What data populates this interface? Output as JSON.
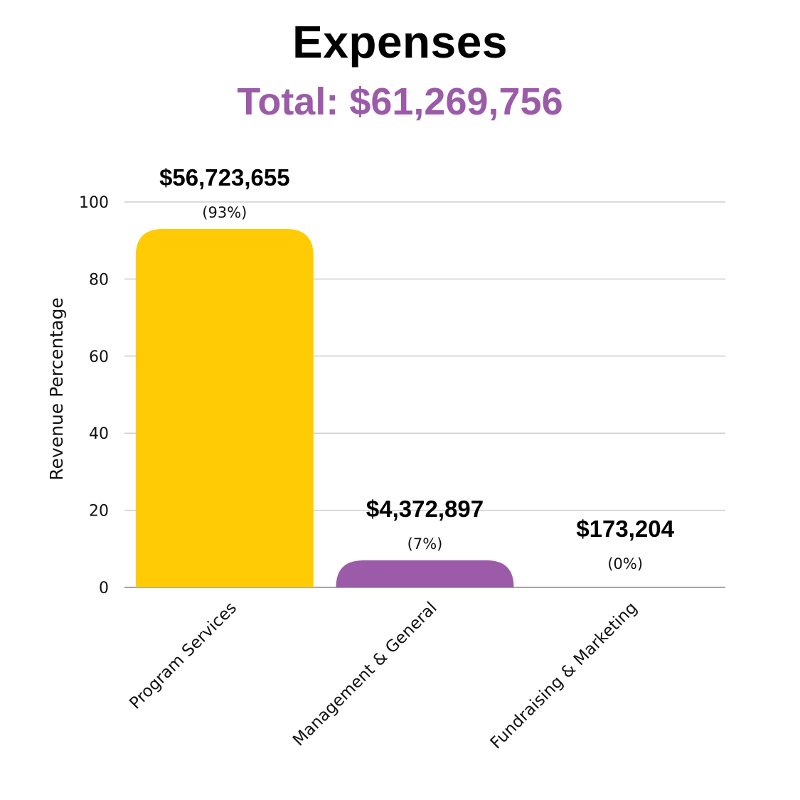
{
  "chart_data": {
    "type": "bar",
    "title": "Expenses",
    "subtitle": "Total: $61,269,756",
    "xlabel": "",
    "ylabel": "Revenue Percentage",
    "ylim": [
      0,
      100
    ],
    "yticks": [
      0,
      20,
      40,
      60,
      80,
      100
    ],
    "grid": true,
    "categories": [
      "Program Services",
      "Management & General",
      "Fundraising & Marketing"
    ],
    "values": [
      93,
      7,
      0
    ],
    "value_labels": [
      "$56,723,655",
      "$4,372,897",
      "$173,204"
    ],
    "percent_labels": [
      "(93%)",
      "(7%)",
      "(0%)"
    ],
    "colors": [
      "#fecb05",
      "#9b5ba8",
      "#9b5ba8"
    ],
    "subtitle_color": "#9b5ba8"
  }
}
